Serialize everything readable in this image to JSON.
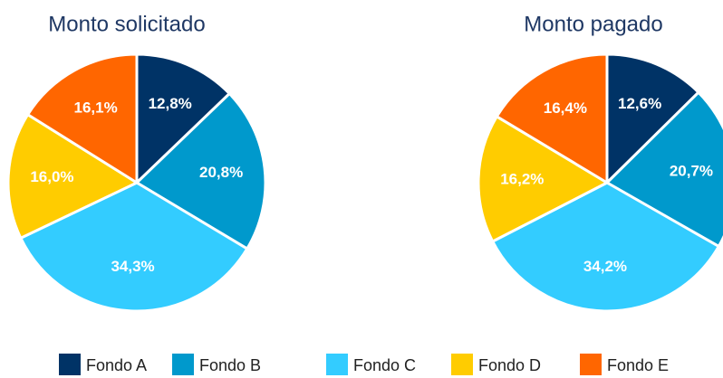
{
  "chart_data": [
    {
      "type": "pie",
      "title": "Monto solicitado",
      "categories": [
        "Fondo A",
        "Fondo B",
        "Fondo C",
        "Fondo D",
        "Fondo E"
      ],
      "values": [
        12.8,
        20.8,
        34.3,
        16.0,
        16.1
      ],
      "value_labels": [
        "12,8%",
        "20,8%",
        "34,3%",
        "16,0%",
        "16,1%"
      ],
      "colors": [
        "#003366",
        "#0099cc",
        "#33ccff",
        "#ffcc00",
        "#ff6600"
      ]
    },
    {
      "type": "pie",
      "title": "Monto pagado",
      "categories": [
        "Fondo A",
        "Fondo B",
        "Fondo C",
        "Fondo D",
        "Fondo E"
      ],
      "values": [
        12.6,
        20.7,
        34.2,
        16.2,
        16.4
      ],
      "value_labels": [
        "12,6%",
        "20,7%",
        "34,2%",
        "16,2%",
        "16,4%"
      ],
      "colors": [
        "#003366",
        "#0099cc",
        "#33ccff",
        "#ffcc00",
        "#ff6600"
      ]
    }
  ]
}
